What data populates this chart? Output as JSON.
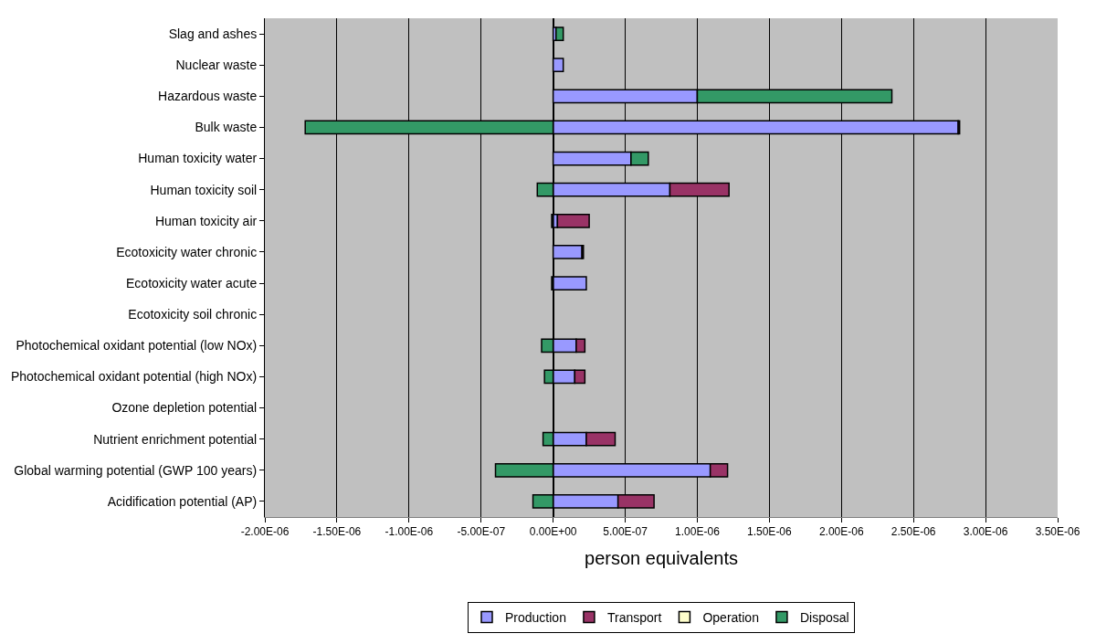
{
  "chart_data": {
    "type": "bar",
    "orientation": "horizontal",
    "stacked": true,
    "xlabel": "person equivalents",
    "categories": [
      "Slag and ashes",
      "Nuclear waste",
      "Hazardous waste",
      "Bulk waste",
      "Human toxicity water",
      "Human toxicity soil",
      "Human toxicity air",
      "Ecotoxicity water chronic",
      "Ecotoxicity water acute",
      "Ecotoxicity soil chronic",
      "Photochemical oxidant potential (low NOx)",
      "Photochemical oxidant potential (high NOx)",
      "Ozone depletion potential",
      "Nutrient enrichment potential",
      "Global warming potential (GWP 100 years)",
      "Acidification potential (AP)"
    ],
    "series": [
      {
        "name": "Production",
        "color": "#9999ff",
        "values": [
          2e-08,
          7e-08,
          1e-06,
          2.81e-06,
          5.4e-07,
          8.1e-07,
          3e-08,
          2e-07,
          2.3e-07,
          null,
          1.6e-07,
          1.5e-07,
          null,
          2.3e-07,
          1.09e-06,
          4.5e-07
        ]
      },
      {
        "name": "Transport",
        "color": "#993366",
        "values": [
          null,
          null,
          null,
          1e-08,
          null,
          4.1e-07,
          2.2e-07,
          1e-08,
          null,
          null,
          6e-08,
          7e-08,
          null,
          2e-07,
          1.2e-07,
          2.5e-07
        ]
      },
      {
        "name": "Operation",
        "color": "#ffffcc",
        "values": [
          null,
          null,
          null,
          null,
          null,
          null,
          null,
          null,
          null,
          null,
          null,
          null,
          null,
          null,
          null,
          null
        ]
      },
      {
        "name": "Disposal",
        "color": "#339966",
        "values": [
          5e-08,
          null,
          1.35e-06,
          -1.72e-06,
          1.2e-07,
          -1.1e-07,
          -1e-08,
          null,
          -1e-08,
          null,
          -8e-08,
          -6e-08,
          null,
          -7e-08,
          -4e-07,
          -1.4e-07
        ]
      }
    ],
    "xlim": [
      -2e-06,
      3.5e-06
    ],
    "xticks": [
      {
        "value": -2e-06,
        "label": "-2.00E-06"
      },
      {
        "value": -1.5e-06,
        "label": "-1.50E-06"
      },
      {
        "value": -1e-06,
        "label": "-1.00E-06"
      },
      {
        "value": -5e-07,
        "label": "-5.00E-07"
      },
      {
        "value": 0,
        "label": "0.00E+00"
      },
      {
        "value": 5e-07,
        "label": "5.00E-07"
      },
      {
        "value": 1e-06,
        "label": "1.00E-06"
      },
      {
        "value": 1.5e-06,
        "label": "1.50E-06"
      },
      {
        "value": 2e-06,
        "label": "2.00E-06"
      },
      {
        "value": 2.5e-06,
        "label": "2.50E-06"
      },
      {
        "value": 3e-06,
        "label": "3.00E-06"
      },
      {
        "value": 3.5e-06,
        "label": "3.50E-06"
      }
    ],
    "grid": "x",
    "legend": "bottom"
  }
}
